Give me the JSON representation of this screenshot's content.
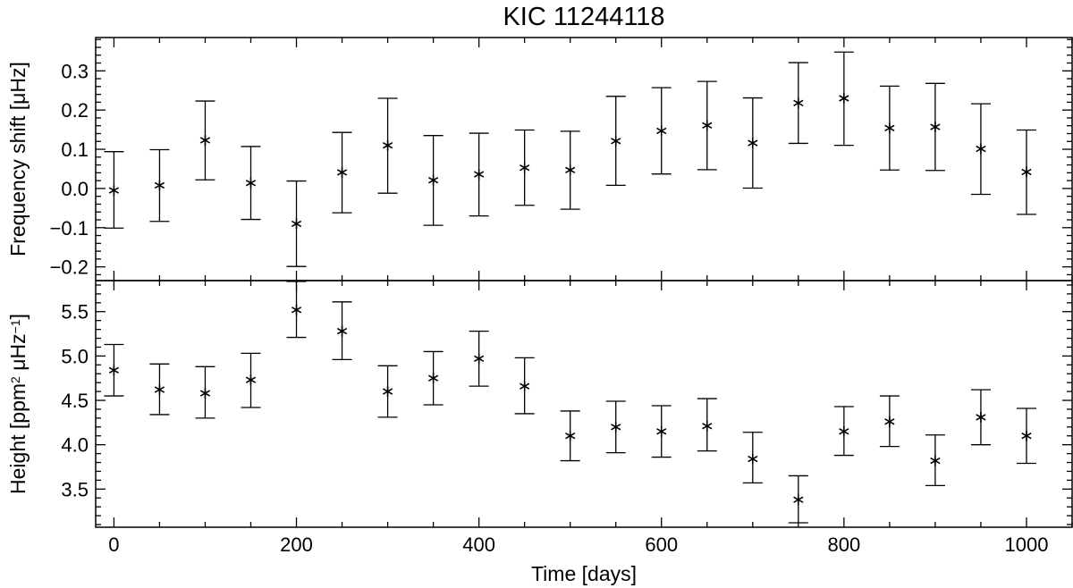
{
  "chart_data": {
    "type": "scatter",
    "title": "KIC 11244118",
    "xlabel": "Time [days]",
    "xlim": [
      -20,
      1050
    ],
    "xticks": [
      "0",
      "200",
      "400",
      "600",
      "800",
      "1000"
    ],
    "panels": [
      {
        "ylabel": "Frequency shift [μHz]",
        "ylim": [
          -0.235,
          0.385
        ],
        "yticks": [
          "−0.2",
          "−0.1",
          "0.0",
          "0.1",
          "0.2",
          "0.3"
        ],
        "series": [
          {
            "marker": "asterisk",
            "x": [
              0,
              50,
              100,
              150,
              200,
              250,
              300,
              350,
              400,
              450,
              500,
              550,
              600,
              650,
              700,
              750,
              800,
              850,
              900,
              950,
              1000
            ],
            "y": [
              -0.005,
              0.008,
              0.123,
              0.014,
              -0.09,
              0.041,
              0.11,
              0.021,
              0.036,
              0.053,
              0.047,
              0.121,
              0.147,
              0.161,
              0.116,
              0.218,
              0.23,
              0.154,
              0.157,
              0.101,
              0.042
            ],
            "err_low": [
              -0.101,
              -0.084,
              0.022,
              -0.079,
              -0.199,
              -0.062,
              -0.012,
              -0.094,
              -0.07,
              -0.043,
              -0.053,
              0.008,
              0.037,
              0.048,
              0.001,
              0.115,
              0.11,
              0.047,
              0.046,
              -0.015,
              -0.066
            ],
            "err_high": [
              0.094,
              0.099,
              0.223,
              0.107,
              0.019,
              0.143,
              0.23,
              0.135,
              0.141,
              0.149,
              0.146,
              0.235,
              0.257,
              0.273,
              0.231,
              0.321,
              0.348,
              0.261,
              0.268,
              0.216,
              0.149
            ]
          }
        ]
      },
      {
        "ylabel": "Height [ppm² μHz⁻¹]",
        "ylim": [
          3.07,
          5.85
        ],
        "yticks": [
          "3.5",
          "4.0",
          "4.5",
          "5.0",
          "5.5"
        ],
        "series": [
          {
            "marker": "asterisk",
            "x": [
              0,
              50,
              100,
              150,
              200,
              250,
              300,
              350,
              400,
              450,
              500,
              550,
              600,
              650,
              700,
              750,
              800,
              850,
              900,
              950,
              1000
            ],
            "y": [
              4.84,
              4.62,
              4.58,
              4.73,
              5.52,
              5.28,
              4.6,
              4.75,
              4.97,
              4.66,
              4.1,
              4.2,
              4.15,
              4.21,
              3.84,
              3.38,
              4.15,
              4.26,
              3.82,
              4.31,
              4.1
            ],
            "err_low": [
              4.55,
              4.34,
              4.3,
              4.42,
              5.21,
              4.96,
              4.31,
              4.45,
              4.66,
              4.35,
              3.82,
              3.91,
              3.86,
              3.93,
              3.57,
              3.12,
              3.88,
              3.98,
              3.54,
              4.0,
              3.79
            ],
            "err_high": [
              5.13,
              4.91,
              4.88,
              5.03,
              5.84,
              5.61,
              4.89,
              5.05,
              5.28,
              4.98,
              4.38,
              4.49,
              4.44,
              4.52,
              4.14,
              3.65,
              4.43,
              4.55,
              4.11,
              4.62,
              4.41
            ]
          }
        ]
      }
    ]
  }
}
